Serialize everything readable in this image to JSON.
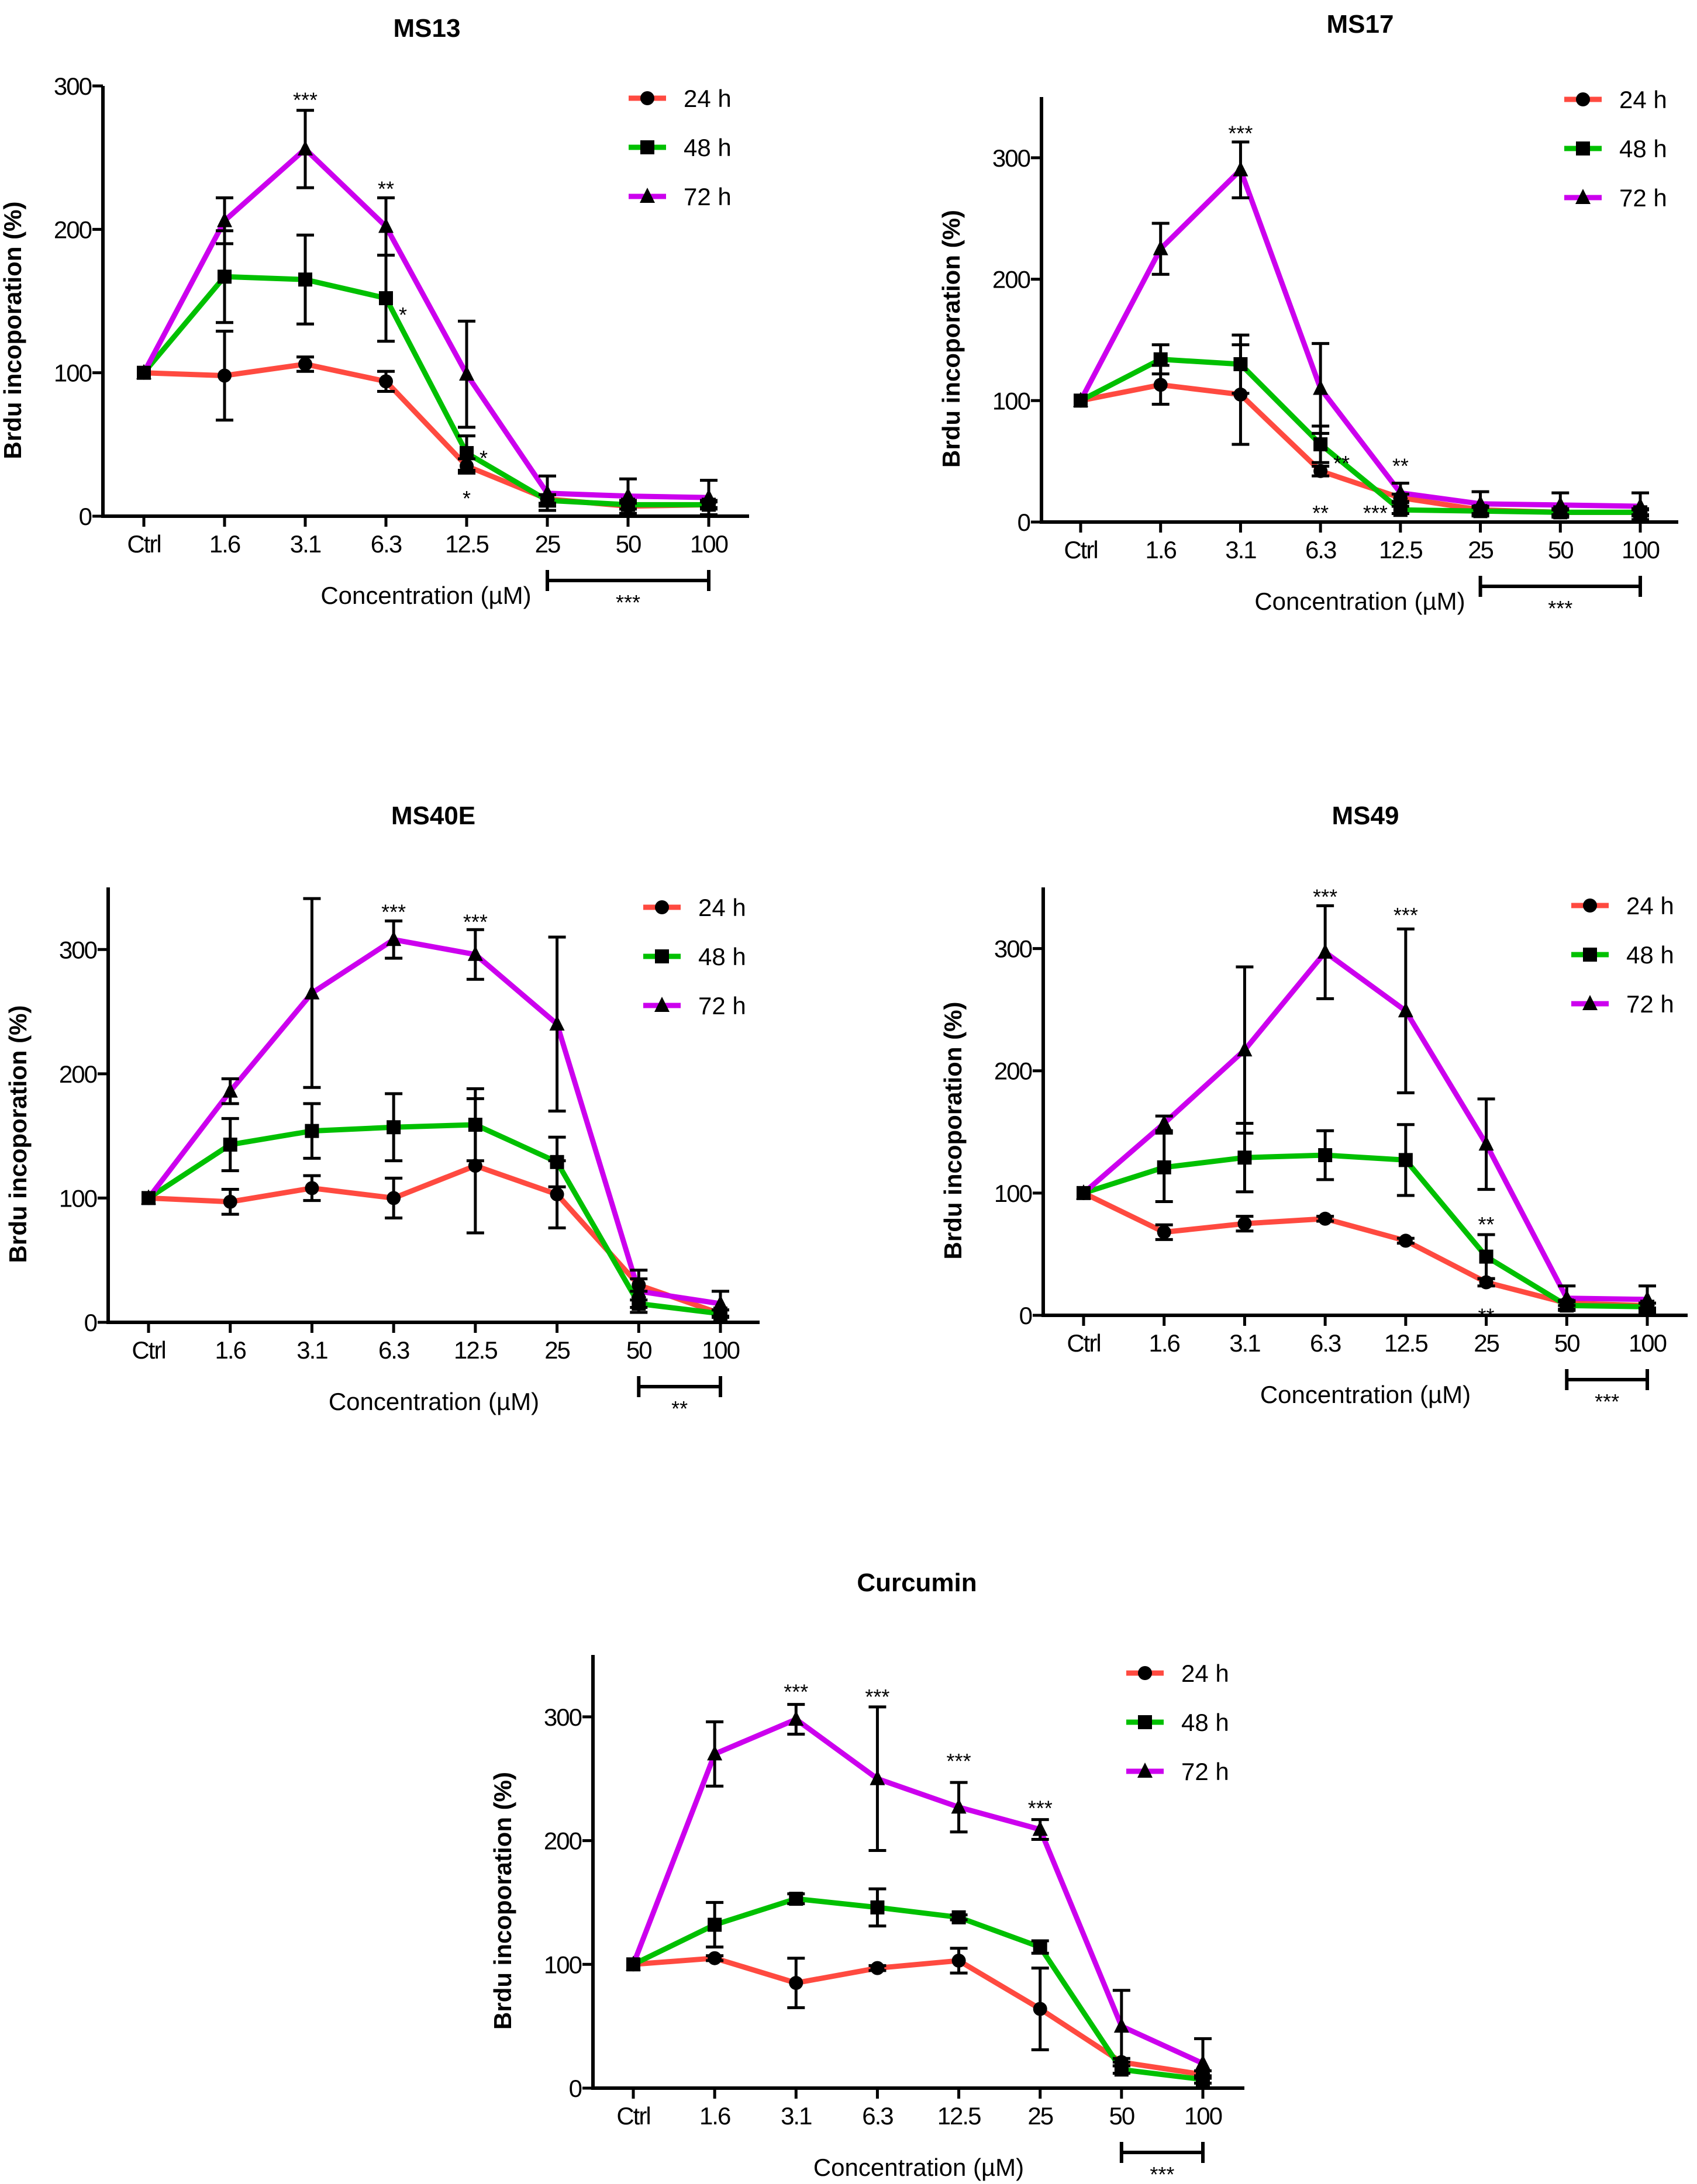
{
  "colors": {
    "24 h": "#ff4a40",
    "48 h": "#00c000",
    "72 h": "#cc00ee"
  },
  "chart_data": [
    {
      "type": "line",
      "title": "MS13",
      "xlabel": "Concentration (µM)",
      "ylabel": "Brdu incoporation (%)",
      "categories": [
        "Ctrl",
        "1.6",
        "3.1",
        "6.3",
        "12.5",
        "25",
        "50",
        "100"
      ],
      "ylim": [
        0,
        300
      ],
      "yticks": [
        0,
        100,
        200,
        300
      ],
      "legend": "top-right",
      "series": [
        {
          "name": "24 h",
          "marker": "circle",
          "values": [
            100,
            98,
            106,
            94,
            35,
            12,
            7,
            8
          ],
          "error": [
            0,
            31,
            5,
            7,
            5,
            3,
            2,
            2
          ]
        },
        {
          "name": "48 h",
          "marker": "square",
          "values": [
            100,
            167,
            165,
            152,
            44,
            11,
            8,
            8
          ],
          "error": [
            0,
            32,
            31,
            30,
            12,
            4,
            3,
            3
          ]
        },
        {
          "name": "72 h",
          "marker": "triangle",
          "values": [
            100,
            206,
            256,
            202,
            99,
            16,
            14,
            13
          ],
          "error": [
            0,
            16,
            27,
            20,
            37,
            12,
            12,
            12
          ]
        }
      ],
      "annotations": [
        {
          "text": "***",
          "category": 2,
          "y": 290,
          "position": "above"
        },
        {
          "text": "**",
          "category": 3,
          "y": 228,
          "position": "above"
        },
        {
          "text": "*",
          "category": 3,
          "y": 146,
          "position": "right"
        },
        {
          "text": "*",
          "category": 4,
          "y": 46,
          "position": "right"
        },
        {
          "text": "*",
          "category": 4,
          "y": 18,
          "position": "below"
        }
      ],
      "bracket": {
        "from": 5,
        "to": 7,
        "text": "***"
      }
    },
    {
      "type": "line",
      "title": "MS17",
      "xlabel": "Concentration (µM)",
      "ylabel": "Brdu incoporation (%)",
      "categories": [
        "Ctrl",
        "1.6",
        "3.1",
        "6.3",
        "12.5",
        "25",
        "50",
        "100"
      ],
      "ylim": [
        0,
        350
      ],
      "yticks": [
        0,
        100,
        200,
        300
      ],
      "legend": "top-right",
      "series": [
        {
          "name": "24 h",
          "marker": "circle",
          "values": [
            100,
            113,
            105,
            42,
            20,
            10,
            8,
            8
          ],
          "error": [
            0,
            16,
            41,
            4,
            3,
            3,
            2,
            2
          ]
        },
        {
          "name": "48 h",
          "marker": "square",
          "values": [
            100,
            134,
            130,
            64,
            10,
            9,
            8,
            8
          ],
          "error": [
            0,
            12,
            24,
            15,
            3,
            3,
            3,
            3
          ]
        },
        {
          "name": "72 h",
          "marker": "triangle",
          "values": [
            100,
            225,
            290,
            110,
            24,
            15,
            14,
            13
          ],
          "error": [
            0,
            21,
            23,
            37,
            8,
            10,
            10,
            11
          ]
        }
      ],
      "annotations": [
        {
          "text": "***",
          "category": 2,
          "y": 320,
          "position": "above"
        },
        {
          "text": "**",
          "category": 3,
          "y": 55,
          "position": "right"
        },
        {
          "text": "**",
          "category": 3,
          "y": 14,
          "position": "below"
        },
        {
          "text": "**",
          "category": 4,
          "y": 46,
          "position": "above"
        },
        {
          "text": "***",
          "category": 4,
          "y": 14,
          "position": "left"
        }
      ],
      "bracket": {
        "from": 5,
        "to": 7,
        "text": "***"
      }
    },
    {
      "type": "line",
      "title": "MS40E",
      "xlabel": "Concentration (µM)",
      "ylabel": "Brdu incoporation (%)",
      "categories": [
        "Ctrl",
        "1.6",
        "3.1",
        "6.3",
        "12.5",
        "25",
        "50",
        "100"
      ],
      "ylim": [
        0,
        350
      ],
      "yticks": [
        0,
        100,
        200,
        300
      ],
      "legend": "top-right",
      "series": [
        {
          "name": "24 h",
          "marker": "circle",
          "values": [
            100,
            97,
            108,
            100,
            126,
            103,
            30,
            7
          ],
          "error": [
            0,
            10,
            10,
            16,
            54,
            27,
            5,
            3
          ]
        },
        {
          "name": "48 h",
          "marker": "square",
          "values": [
            100,
            143,
            154,
            157,
            159,
            129,
            15,
            7
          ],
          "error": [
            0,
            21,
            22,
            27,
            29,
            20,
            3,
            3
          ]
        },
        {
          "name": "72 h",
          "marker": "triangle",
          "values": [
            100,
            186,
            265,
            308,
            296,
            240,
            25,
            15
          ],
          "error": [
            0,
            10,
            76,
            15,
            20,
            70,
            17,
            10
          ]
        }
      ],
      "annotations": [
        {
          "text": "***",
          "category": 3,
          "y": 330,
          "position": "above"
        },
        {
          "text": "***",
          "category": 4,
          "y": 322,
          "position": "above"
        }
      ],
      "bracket": {
        "from": 6,
        "to": 7,
        "text": "**"
      }
    },
    {
      "type": "line",
      "title": "MS49",
      "xlabel": "Concentration (µM)",
      "ylabel": "Brdu incoporation (%)",
      "categories": [
        "Ctrl",
        "1.6",
        "3.1",
        "6.3",
        "12.5",
        "25",
        "50",
        "100"
      ],
      "ylim": [
        0,
        350
      ],
      "yticks": [
        0,
        100,
        200,
        300
      ],
      "legend": "top-right",
      "series": [
        {
          "name": "24 h",
          "marker": "circle",
          "values": [
            100,
            68,
            75,
            79,
            61,
            27,
            10,
            8
          ],
          "error": [
            0,
            6,
            6,
            2,
            2,
            3,
            2,
            2
          ]
        },
        {
          "name": "48 h",
          "marker": "square",
          "values": [
            100,
            121,
            129,
            131,
            127,
            48,
            8,
            7
          ],
          "error": [
            0,
            28,
            28,
            20,
            29,
            18,
            3,
            3
          ]
        },
        {
          "name": "72 h",
          "marker": "triangle",
          "values": [
            100,
            157,
            217,
            297,
            249,
            140,
            14,
            13
          ],
          "error": [
            0,
            6,
            68,
            38,
            67,
            37,
            10,
            11
          ]
        }
      ],
      "annotations": [
        {
          "text": "***",
          "category": 3,
          "y": 342,
          "position": "above"
        },
        {
          "text": "***",
          "category": 4,
          "y": 327,
          "position": "above"
        },
        {
          "text": "**",
          "category": 5,
          "y": 74,
          "position": "above"
        },
        {
          "text": "**",
          "category": 5,
          "y": 6,
          "position": "below"
        }
      ],
      "bracket": {
        "from": 6,
        "to": 7,
        "text": "***"
      }
    },
    {
      "type": "line",
      "title": "Curcumin",
      "xlabel": "Concentration (µM)",
      "ylabel": "Brdu incoporation (%)",
      "categories": [
        "Ctrl",
        "1.6",
        "3.1",
        "6.3",
        "12.5",
        "25",
        "50",
        "100"
      ],
      "ylim": [
        0,
        350
      ],
      "yticks": [
        0,
        100,
        200,
        300
      ],
      "legend": "top-right",
      "series": [
        {
          "name": "24 h",
          "marker": "circle",
          "values": [
            100,
            105,
            85,
            97,
            103,
            64,
            21,
            11
          ],
          "error": [
            0,
            2,
            20,
            2,
            10,
            33,
            3,
            3
          ]
        },
        {
          "name": "48 h",
          "marker": "square",
          "values": [
            100,
            132,
            153,
            146,
            138,
            114,
            15,
            7
          ],
          "error": [
            0,
            18,
            4,
            15,
            2,
            5,
            3,
            3
          ]
        },
        {
          "name": "72 h",
          "marker": "triangle",
          "values": [
            100,
            270,
            298,
            250,
            227,
            209,
            50,
            20
          ],
          "error": [
            0,
            26,
            12,
            58,
            20,
            8,
            29,
            20
          ]
        }
      ],
      "annotations": [
        {
          "text": "***",
          "category": 2,
          "y": 320,
          "position": "above"
        },
        {
          "text": "***",
          "category": 3,
          "y": 316,
          "position": "above"
        },
        {
          "text": "***",
          "category": 4,
          "y": 264,
          "position": "above"
        },
        {
          "text": "***",
          "category": 5,
          "y": 226,
          "position": "above"
        }
      ],
      "bracket": {
        "from": 6,
        "to": 7,
        "text": "***"
      }
    }
  ]
}
